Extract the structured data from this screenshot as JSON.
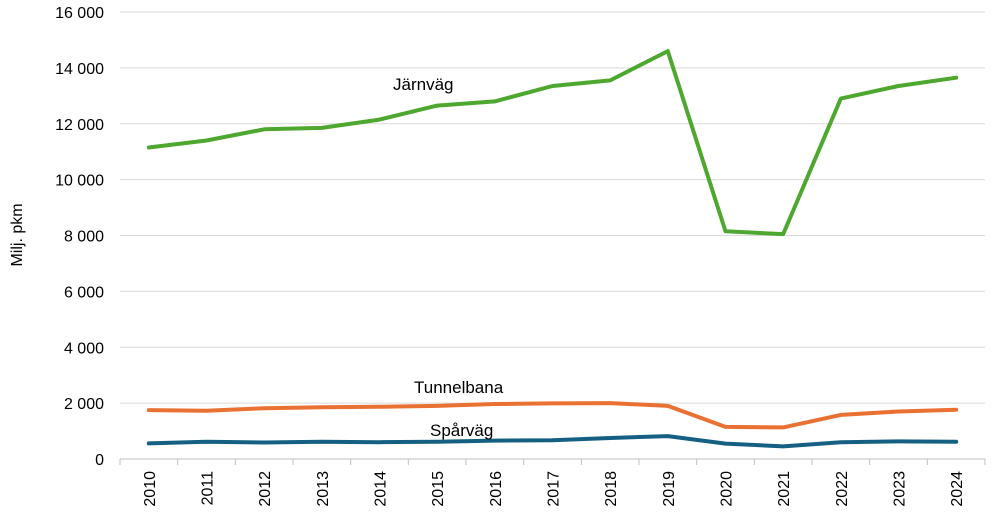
{
  "chart_data": {
    "type": "line",
    "ylabel": "Milj. pkm",
    "xlabel": "",
    "title": "",
    "ylim": [
      0,
      16000
    ],
    "yticks": [
      0,
      2000,
      4000,
      6000,
      8000,
      10000,
      12000,
      14000,
      16000
    ],
    "ytick_labels": [
      "0",
      "2 000",
      "4 000",
      "6 000",
      "8 000",
      "10 000",
      "12 000",
      "14 000",
      "16 000"
    ],
    "grid": "horizontal",
    "legend": "none",
    "categories": [
      "2010",
      "2011",
      "2012",
      "2013",
      "2014",
      "2015",
      "2016",
      "2017",
      "2018",
      "2019",
      "2020",
      "2021",
      "2022",
      "2023",
      "2024"
    ],
    "series": [
      {
        "name": "Järnväg",
        "color": "#4ea72e",
        "values": [
          11150,
          11400,
          11800,
          11850,
          12150,
          12650,
          12800,
          13350,
          13550,
          14600,
          8150,
          8050,
          12900,
          13350,
          13650
        ]
      },
      {
        "name": "Tunnelbana",
        "color": "#e97132",
        "values": [
          1750,
          1730,
          1820,
          1850,
          1870,
          1900,
          1970,
          1990,
          2000,
          1900,
          1150,
          1130,
          1580,
          1700,
          1760
        ]
      },
      {
        "name": "Spårväg",
        "color": "#156082",
        "values": [
          560,
          620,
          590,
          620,
          600,
          620,
          660,
          670,
          750,
          820,
          550,
          450,
          600,
          630,
          620
        ]
      }
    ]
  }
}
